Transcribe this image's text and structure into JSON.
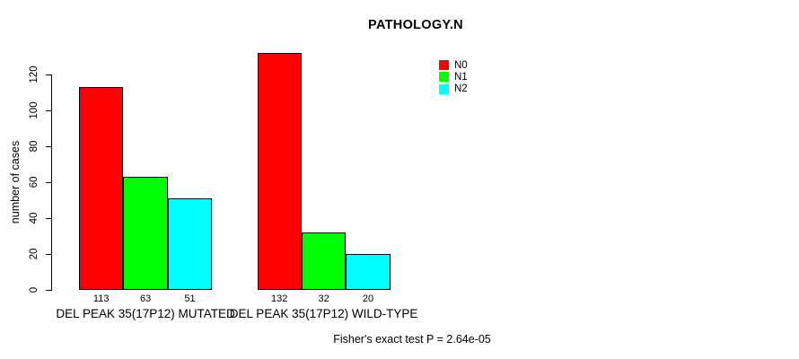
{
  "chart_data": {
    "type": "bar",
    "title": "PATHOLOGY.N",
    "ylabel": "number of cases",
    "xlabel": "",
    "ylim": [
      0,
      135
    ],
    "yticks": [
      0,
      20,
      40,
      60,
      80,
      100,
      120
    ],
    "grid": false,
    "legend_position": "top-right-inside",
    "categories": [
      "DEL PEAK 35(17P12) MUTATED",
      "DEL PEAK 35(17P12) WILD-TYPE"
    ],
    "series": [
      {
        "name": "N0",
        "color": "#FF0000",
        "values": [
          113,
          132
        ]
      },
      {
        "name": "N1",
        "color": "#00FF00",
        "values": [
          63,
          32
        ]
      },
      {
        "name": "N2",
        "color": "#00FFFF",
        "values": [
          51,
          20
        ]
      }
    ],
    "bar_value_labels": [
      [
        "113",
        "63",
        "51"
      ],
      [
        "132",
        "32",
        "20"
      ]
    ],
    "annotation": "Fisher's exact test P = 2.64e-05"
  }
}
